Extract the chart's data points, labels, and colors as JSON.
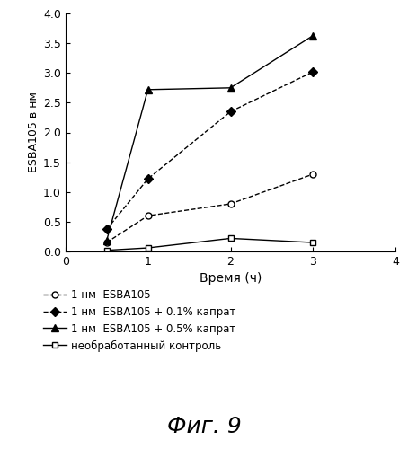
{
  "series": [
    {
      "label": "1 нм  ESBA105",
      "x": [
        0.5,
        1,
        2,
        3
      ],
      "y": [
        0.15,
        0.6,
        0.8,
        1.3
      ],
      "color": "#000000",
      "linestyle": "--",
      "marker": "o",
      "markersize": 5,
      "linewidth": 1.0,
      "mfc": "white"
    },
    {
      "label": "1 нм  ESBA105 + 0.1% капрат",
      "x": [
        0.5,
        1,
        2,
        3
      ],
      "y": [
        0.37,
        1.22,
        2.35,
        3.02
      ],
      "color": "#000000",
      "linestyle": "--",
      "marker": "D",
      "markersize": 5,
      "linewidth": 1.0,
      "mfc": "#000000"
    },
    {
      "label": "1 нм  ESBA105 + 0.5% капрат",
      "x": [
        0.5,
        1,
        2,
        3
      ],
      "y": [
        0.18,
        2.72,
        2.75,
        3.63
      ],
      "color": "#000000",
      "linestyle": "-",
      "marker": "^",
      "markersize": 6,
      "linewidth": 1.0,
      "mfc": "#000000"
    },
    {
      "label": "необработанный контроль",
      "x": [
        0.5,
        1,
        2,
        3
      ],
      "y": [
        0.02,
        0.06,
        0.22,
        0.15
      ],
      "color": "#000000",
      "linestyle": "-",
      "marker": "s",
      "markersize": 5,
      "linewidth": 1.0,
      "mfc": "white"
    }
  ],
  "xlabel": "Время (ч)",
  "ylabel": "ESBA105 в нм",
  "xlim": [
    0,
    4
  ],
  "ylim": [
    0,
    4.0
  ],
  "yticks": [
    0.0,
    0.5,
    1.0,
    1.5,
    2.0,
    2.5,
    3.0,
    3.5,
    4.0
  ],
  "xticks": [
    0,
    1,
    2,
    3,
    4
  ],
  "figure_caption": "Фиг. 9",
  "background_color": "#ffffff",
  "legend_labels": [
    "1 нм  ESBA105",
    "1 нм  ESBA105 + 0.1% капрат",
    "1 нм  ESBA105 + 0.5% капрат",
    "необработанный контроль"
  ]
}
